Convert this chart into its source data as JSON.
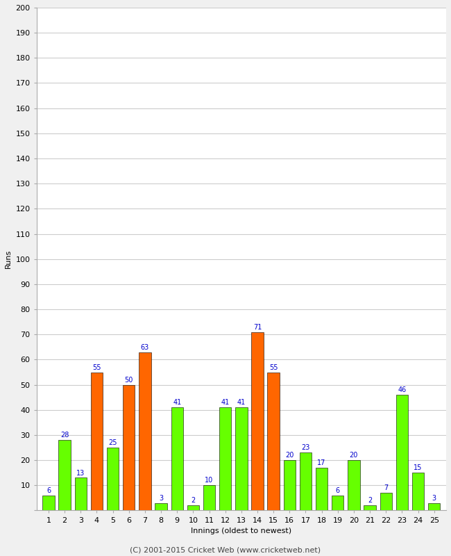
{
  "innings": [
    1,
    2,
    3,
    4,
    5,
    6,
    7,
    8,
    9,
    10,
    11,
    12,
    13,
    14,
    15,
    16,
    17,
    18,
    19,
    20,
    21,
    22,
    23,
    24,
    25
  ],
  "values": [
    6,
    28,
    13,
    55,
    25,
    50,
    63,
    3,
    41,
    2,
    10,
    41,
    41,
    71,
    55,
    20,
    23,
    17,
    6,
    20,
    2,
    7,
    46,
    15,
    3
  ],
  "colors": [
    "#66ff00",
    "#66ff00",
    "#66ff00",
    "#ff6600",
    "#66ff00",
    "#ff6600",
    "#ff6600",
    "#66ff00",
    "#66ff00",
    "#66ff00",
    "#66ff00",
    "#66ff00",
    "#66ff00",
    "#ff6600",
    "#ff6600",
    "#66ff00",
    "#66ff00",
    "#66ff00",
    "#66ff00",
    "#66ff00",
    "#66ff00",
    "#66ff00",
    "#66ff00",
    "#66ff00",
    "#66ff00"
  ],
  "ylabel": "Runs",
  "xlabel": "Innings (oldest to newest)",
  "ylim": [
    0,
    200
  ],
  "yticks": [
    0,
    10,
    20,
    30,
    40,
    50,
    60,
    70,
    80,
    90,
    100,
    110,
    120,
    130,
    140,
    150,
    160,
    170,
    180,
    190,
    200
  ],
  "label_color": "#0000cc",
  "bar_edge_color": "#000000",
  "background_color": "#f0f0f0",
  "plot_bg_color": "#ffffff",
  "footer": "(C) 2001-2015 Cricket Web (www.cricketweb.net)",
  "label_fontsize": 7,
  "axis_fontsize": 8,
  "tick_fontsize": 8,
  "footer_fontsize": 8,
  "grid_color": "#cccccc",
  "bar_width": 0.75
}
